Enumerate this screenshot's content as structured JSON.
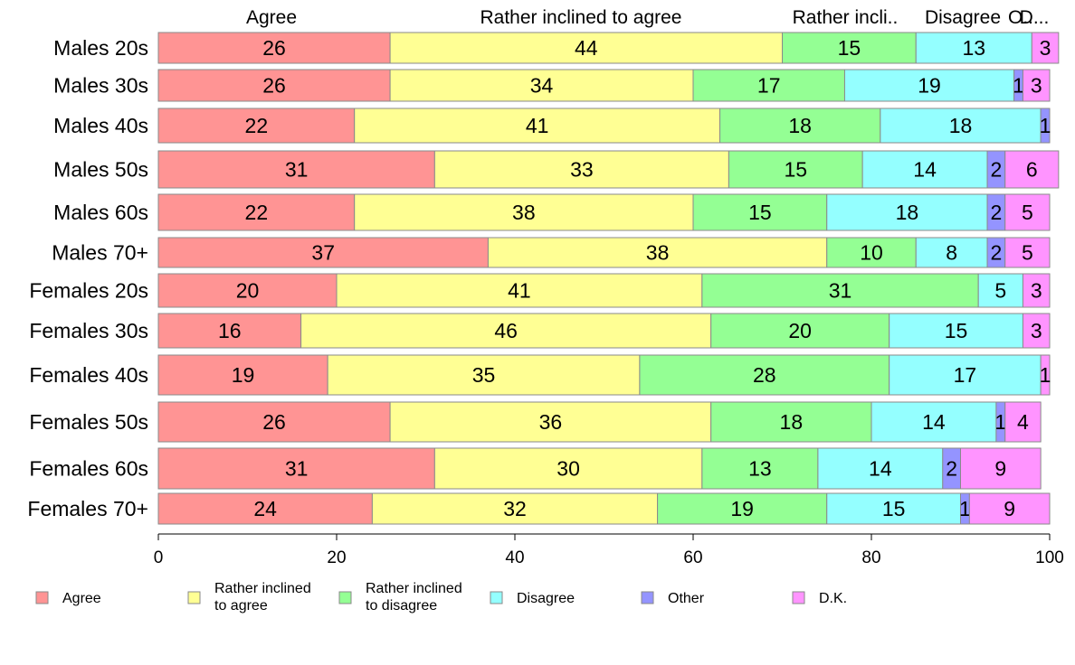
{
  "chart_data": {
    "type": "bar",
    "orientation": "horizontal",
    "stacked": true,
    "title": "",
    "xlabel": "",
    "ylabel": "",
    "xlim": [
      0,
      100
    ],
    "x_ticks": [
      "0",
      "20",
      "40",
      "60",
      "80",
      "100"
    ],
    "grid": false,
    "legend_position": "bottom",
    "top_labels": [
      "Agree",
      "Rather inclined to agree",
      "Rather incli..",
      "Disagree",
      "O..",
      "D..."
    ],
    "categories": [
      "Males 20s",
      "Males 30s",
      "Males 40s",
      "Males 50s",
      "Males 60s",
      "Males 70+",
      "Females 20s",
      "Females 30s",
      "Females 40s",
      "Females 50s",
      "Females 60s",
      "Females 70+"
    ],
    "series": [
      {
        "name": "Agree",
        "legend": "Agree",
        "color": "#ff9494",
        "values": [
          26,
          26,
          22,
          31,
          22,
          37,
          20,
          16,
          19,
          26,
          31,
          24
        ]
      },
      {
        "name": "Rather inclined to agree",
        "legend": "Rather inclined to agree",
        "color": "#ffff94",
        "values": [
          44,
          34,
          41,
          33,
          38,
          38,
          41,
          46,
          35,
          36,
          30,
          32
        ]
      },
      {
        "name": "Rather inclined to disagree",
        "legend": "Rather inclined to disagree",
        "color": "#94ff94",
        "values": [
          15,
          17,
          18,
          15,
          15,
          10,
          31,
          20,
          28,
          18,
          13,
          19
        ]
      },
      {
        "name": "Disagree",
        "legend": "Disagree",
        "color": "#94ffff",
        "values": [
          13,
          19,
          18,
          14,
          18,
          8,
          5,
          15,
          17,
          14,
          14,
          15
        ]
      },
      {
        "name": "Other",
        "legend": "Other",
        "color": "#9494ff",
        "values": [
          0,
          1,
          1,
          2,
          2,
          2,
          0,
          0,
          0,
          1,
          2,
          1
        ]
      },
      {
        "name": "D.K.",
        "legend": "D.K.",
        "color": "#ff94ff",
        "values": [
          3,
          3,
          0,
          6,
          5,
          5,
          3,
          3,
          1,
          4,
          9,
          9
        ]
      }
    ]
  }
}
